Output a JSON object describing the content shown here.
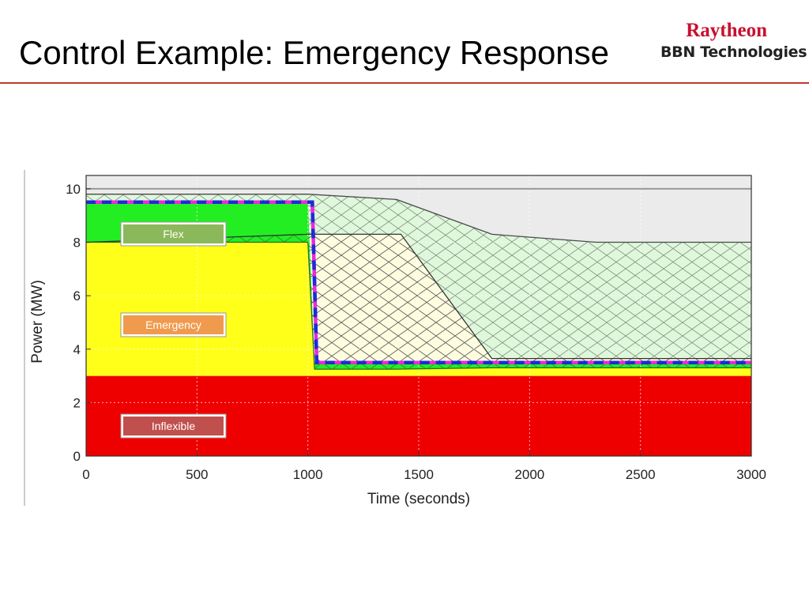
{
  "slide": {
    "title": "Control Example: Emergency Response"
  },
  "logo": {
    "line1": "Raytheon",
    "line2": "BBN Technologies"
  },
  "chart_data": {
    "type": "area",
    "xlabel": "Time (seconds)",
    "ylabel": "Power (MW)",
    "xlim": [
      0,
      3000
    ],
    "ylim": [
      0,
      10.5
    ],
    "xticks": [
      0,
      500,
      1000,
      1500,
      2000,
      2500,
      3000
    ],
    "yticks": [
      0,
      2,
      4,
      6,
      8,
      10
    ],
    "grid": true,
    "colors": {
      "inflexible": "#ee0000",
      "emergency": "#ffff1a",
      "flex": "#22ee22",
      "emergency_released": "#fffde0",
      "flex_released": "#dff8dc",
      "cap_line": "#999999",
      "total_dashed": "#1f2ad8",
      "total_dash_alt": "#e82bd9"
    },
    "legend": [
      {
        "label": "Flex",
        "color": "#8bb85a"
      },
      {
        "label": "Emergency",
        "color": "#f09a4e"
      },
      {
        "label": "Inflexible",
        "color": "#c0504d"
      }
    ],
    "series": [
      {
        "key": "inflexible",
        "x": [
          0,
          3000
        ],
        "values": [
          3.0,
          3.0
        ]
      },
      {
        "key": "emergency_top",
        "x": [
          0,
          1000,
          1030,
          1050,
          1400,
          1830,
          3000
        ],
        "values": [
          8.0,
          8.0,
          3.25,
          3.25,
          3.25,
          3.3,
          3.3
        ]
      },
      {
        "key": "flex_top",
        "x": [
          0,
          1000,
          1030,
          1050,
          1400,
          1830,
          3000
        ],
        "values": [
          9.5,
          9.5,
          3.5,
          3.5,
          3.5,
          3.5,
          3.5
        ]
      },
      {
        "key": "emergency_cap",
        "x": [
          0,
          1000,
          1420,
          1830,
          3000
        ],
        "values": [
          8.0,
          8.3,
          8.3,
          3.65,
          3.65
        ]
      },
      {
        "key": "flex_cap",
        "x": [
          0,
          1000,
          1400,
          1830,
          2300,
          3000
        ],
        "values": [
          9.8,
          9.8,
          9.6,
          8.3,
          8.0,
          8.0
        ]
      },
      {
        "key": "cap_line",
        "x": [
          0,
          3000
        ],
        "values": [
          10.0,
          10.0
        ]
      },
      {
        "key": "total_dashed",
        "x": [
          0,
          1020,
          1040,
          3000
        ],
        "values": [
          9.5,
          9.5,
          3.5,
          3.5
        ]
      }
    ]
  }
}
